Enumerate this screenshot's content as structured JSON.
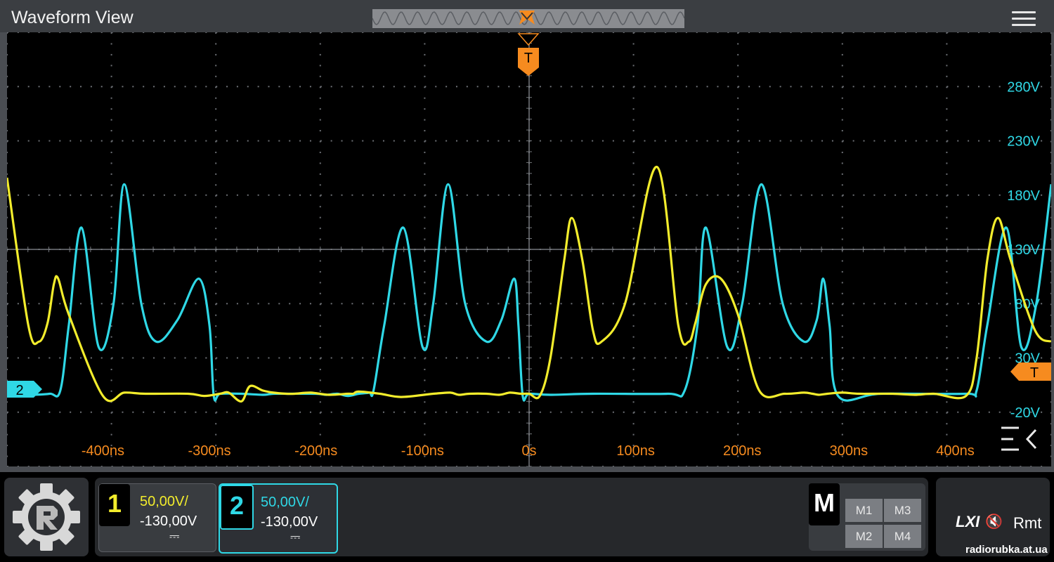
{
  "title": "Waveform View",
  "colors": {
    "ch1": "#f2ec2c",
    "ch2": "#2fd8e6",
    "trigger": "#f68b1f",
    "time_labels": "#f68b1f"
  },
  "trigger_marker": "T",
  "ch2_marker": "2",
  "time_axis": {
    "unit": "ns",
    "labels": [
      "-400ns",
      "-300ns",
      "-200ns",
      "-100ns",
      "0s",
      "100ns",
      "200ns",
      "300ns",
      "400ns"
    ],
    "values": [
      -400,
      -300,
      -200,
      -100,
      0,
      100,
      200,
      300,
      400
    ]
  },
  "voltage_axis": {
    "labels": [
      "280V",
      "230V",
      "180V",
      "130V",
      "80V",
      "30V",
      "-20V"
    ],
    "values": [
      280,
      230,
      180,
      130,
      80,
      30,
      -20
    ]
  },
  "channels": [
    {
      "num": "1",
      "scale": "50,00V/",
      "offset": "-130,00V",
      "coupling": "⎓"
    },
    {
      "num": "2",
      "scale": "50,00V/",
      "offset": "-130,00V",
      "coupling": "⎓"
    }
  ],
  "math": {
    "label": "M",
    "buttons": [
      "M1",
      "M3",
      "M2",
      "M4"
    ]
  },
  "status": {
    "lxi": "LXI",
    "speaker": "🔇",
    "remote": "Rmt"
  },
  "watermark": "radiorubka.at.ua",
  "icons": {
    "menu": "hamburger-menu-icon",
    "collapse": "collapse-menu-icon",
    "logo": "gear-logo-icon"
  },
  "chart_data": {
    "type": "line",
    "x_unit": "ns",
    "xlim": [
      -490,
      490
    ],
    "ylim": [
      -70,
      330
    ],
    "period_ns": 286,
    "series": [
      {
        "x": [
          -490,
          -470,
          -460,
          -452,
          -446,
          -442,
          -432,
          -400,
          -380,
          -360,
          -320,
          -305,
          -290,
          -282,
          -270,
          -262,
          -250,
          -240,
          -228,
          -220,
          -205,
          -188,
          -170,
          -165,
          -160,
          -140,
          -120,
          -90,
          -74,
          -66,
          -56,
          -40,
          -28,
          -18,
          -8,
          0,
          10,
          20,
          33,
          40,
          50,
          60,
          68,
          90,
          120,
          140,
          150,
          156,
          166,
          180,
          196,
          216,
          240,
          258,
          266,
          272,
          280,
          294,
          310,
          340,
          362,
          380,
          410,
          420,
          430,
          440,
          452,
          475,
          490
        ],
        "y": [
          196,
          60,
          45,
          62,
          98,
          103,
          70,
          -5,
          -2,
          -3,
          -3,
          -5,
          -3,
          -2,
          -10,
          4,
          0,
          -2,
          -3,
          -3,
          -2,
          -4,
          -3,
          -3,
          -1,
          -3,
          -6,
          -3,
          -2,
          -4,
          -3,
          -3,
          -4,
          -2,
          -3,
          -3,
          -5,
          30,
          120,
          159,
          120,
          55,
          45,
          80,
          206,
          60,
          45,
          62,
          98,
          103,
          70,
          0,
          -3,
          -2,
          -3,
          -4,
          -3,
          -2,
          -3,
          -3,
          -4,
          -3,
          -5,
          30,
          120,
          159,
          120,
          55,
          45
        ]
      },
      {
        "x": [
          -490,
          -470,
          -450,
          -440,
          -432,
          -420,
          -404,
          -390,
          -380,
          -364,
          -350,
          -330,
          -310,
          -300,
          -296,
          -290,
          -270,
          -250,
          -240,
          -226,
          -200,
          -190,
          -180,
          -170,
          -160,
          -150,
          -146,
          -136,
          -118,
          -100,
          -90,
          -76,
          -60,
          -40,
          -26,
          -14,
          -10,
          -6,
          0,
          20,
          60,
          130,
          146,
          158,
          166,
          186,
          200,
          218,
          238,
          258,
          270,
          276,
          282,
          290,
          330,
          410,
          420,
          430,
          448,
          462,
          476,
          490
        ],
        "y": [
          -3,
          -4,
          -3,
          0,
          60,
          150,
          40,
          80,
          190,
          80,
          45,
          65,
          103,
          60,
          -5,
          -3,
          -3,
          -4,
          -3,
          -3,
          -3,
          -4,
          -3,
          -5,
          -3,
          -2,
          0,
          60,
          150,
          40,
          80,
          190,
          80,
          45,
          65,
          103,
          60,
          -5,
          -3,
          -4,
          -3,
          -3,
          0,
          60,
          150,
          40,
          80,
          190,
          80,
          45,
          65,
          103,
          60,
          -5,
          -3,
          -3,
          0,
          60,
          150,
          40,
          80,
          190
        ]
      }
    ]
  }
}
